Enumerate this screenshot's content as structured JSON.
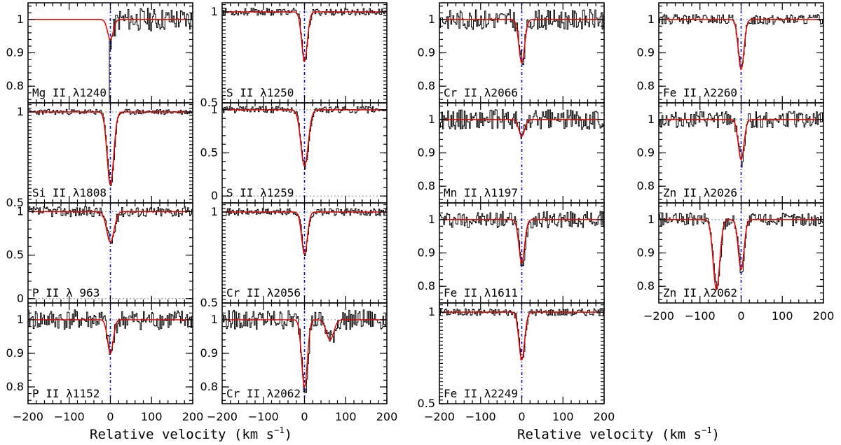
{
  "figure": {
    "xlabel_left": "Relative velocity (km s",
    "xlabel_right": "Relative velocity (km s",
    "xlabel_exponent": "−1",
    "xlabel_suffix": ")"
  },
  "chart_data": {
    "type": "line",
    "description_axis": "normalized flux vs relative velocity",
    "xlim": [
      -200,
      200
    ],
    "x_ticks": [
      -200,
      -100,
      0,
      100,
      200
    ],
    "x_tick_labels": [
      "−200",
      "−100",
      "0",
      "100",
      "200"
    ],
    "colors": {
      "data": "#000000",
      "model": "#e00000",
      "zero_line": "#1010c0",
      "continuum": "#888888"
    },
    "panels": [
      {
        "id": "mg2-1240",
        "col": 0,
        "row": 0,
        "label": "Mg II λ1240",
        "ylim": [
          0.75,
          1.05
        ],
        "yticks": [
          0.8,
          0.9,
          1.0
        ],
        "yticklabels": [
          "0.8",
          "0.9",
          "1"
        ],
        "components": [
          {
            "v": 0,
            "depth": 0.06,
            "width": 7
          }
        ],
        "noise": 0.035,
        "seed": 11,
        "blend": {
          "from": -200,
          "to": -5,
          "level": -1
        }
      },
      {
        "id": "si2-1808",
        "col": 0,
        "row": 1,
        "label": "Si II λ1808",
        "ylim": [
          0.5,
          1.05
        ],
        "yticks": [
          0.5,
          1.0
        ],
        "yticklabels": [
          "0.5",
          "1"
        ],
        "components": [
          {
            "v": 0,
            "depth": 0.4,
            "width": 8
          }
        ],
        "noise": 0.015,
        "seed": 23
      },
      {
        "id": "p2-963",
        "col": 0,
        "row": 2,
        "label": "P II λ 963",
        "ylim": [
          -0.05,
          1.1
        ],
        "yticks": [
          0,
          0.5,
          1.0
        ],
        "yticklabels": [
          "0",
          "0.5",
          "1"
        ],
        "components": [
          {
            "v": 0,
            "depth": 0.35,
            "width": 9
          }
        ],
        "noise": 0.06,
        "seed": 37,
        "zero_line": true
      },
      {
        "id": "p2-1152",
        "col": 0,
        "row": 3,
        "label": "P II λ1152",
        "ylim": [
          0.75,
          1.05
        ],
        "yticks": [
          0.8,
          0.9,
          1.0
        ],
        "yticklabels": [
          "0.8",
          "0.9",
          "1"
        ],
        "components": [
          {
            "v": 0,
            "depth": 0.1,
            "width": 7
          }
        ],
        "noise": 0.03,
        "seed": 41
      },
      {
        "id": "s2-1250",
        "col": 1,
        "row": 0,
        "label": "S II λ1250",
        "ylim": [
          0.5,
          1.05
        ],
        "yticks": [
          0.5,
          1.0
        ],
        "yticklabels": [
          "0.5",
          "1"
        ],
        "components": [
          {
            "v": 0,
            "depth": 0.27,
            "width": 7
          }
        ],
        "noise": 0.02,
        "seed": 53
      },
      {
        "id": "s2-1259",
        "col": 1,
        "row": 1,
        "label": "S II λ1259",
        "ylim": [
          -0.08,
          1.08
        ],
        "yticks": [
          0,
          0.5,
          1.0
        ],
        "yticklabels": [
          "0",
          "0.5",
          "1"
        ],
        "components": [
          {
            "v": 0,
            "depth": 0.65,
            "width": 9
          }
        ],
        "noise": 0.04,
        "seed": 61,
        "zero_line": true
      },
      {
        "id": "cr2-2056",
        "col": 1,
        "row": 2,
        "label": "Cr II λ2056",
        "ylim": [
          0.5,
          1.05
        ],
        "yticks": [
          0.5,
          1.0
        ],
        "yticklabels": [
          "0.5",
          "1"
        ],
        "components": [
          {
            "v": 0,
            "depth": 0.23,
            "width": 7
          }
        ],
        "noise": 0.02,
        "seed": 71
      },
      {
        "id": "cr2-2062",
        "col": 1,
        "row": 3,
        "label": "Cr II λ2062",
        "ylim": [
          0.75,
          1.05
        ],
        "yticks": [
          0.8,
          0.9,
          1.0
        ],
        "yticklabels": [
          "0.8",
          "0.9",
          "1"
        ],
        "components": [
          {
            "v": 0,
            "depth": 0.2,
            "width": 7
          },
          {
            "v": 62,
            "depth": 0.06,
            "width": 9
          }
        ],
        "noise": 0.03,
        "seed": 79
      },
      {
        "id": "cr2-2066",
        "col": 2,
        "row": 0,
        "label": "Cr II λ2066",
        "ylim": [
          0.75,
          1.05
        ],
        "yticks": [
          0.8,
          0.9,
          1.0
        ],
        "yticklabels": [
          "0.8",
          "0.9",
          "1"
        ],
        "components": [
          {
            "v": 0,
            "depth": 0.13,
            "width": 7
          }
        ],
        "noise": 0.03,
        "seed": 83
      },
      {
        "id": "mn2-1197",
        "col": 2,
        "row": 1,
        "label": "Mn II λ1197",
        "ylim": [
          0.75,
          1.05
        ],
        "yticks": [
          0.8,
          0.9,
          1.0
        ],
        "yticklabels": [
          "0.8",
          "0.9",
          "1"
        ],
        "components": [
          {
            "v": 0,
            "depth": 0.05,
            "width": 7
          }
        ],
        "noise": 0.03,
        "seed": 89
      },
      {
        "id": "fe2-1611",
        "col": 2,
        "row": 2,
        "label": "Fe II λ1611",
        "ylim": [
          0.75,
          1.05
        ],
        "yticks": [
          0.8,
          0.9,
          1.0
        ],
        "yticklabels": [
          "0.8",
          "0.9",
          "1"
        ],
        "components": [
          {
            "v": 0,
            "depth": 0.13,
            "width": 7
          }
        ],
        "noise": 0.025,
        "seed": 97
      },
      {
        "id": "fe2-2249",
        "col": 2,
        "row": 3,
        "label": "Fe II λ2249",
        "ylim": [
          0.5,
          1.05
        ],
        "yticks": [
          0.5,
          1.0
        ],
        "yticklabels": [
          "0.5",
          "1"
        ],
        "components": [
          {
            "v": 0,
            "depth": 0.26,
            "width": 7
          }
        ],
        "noise": 0.02,
        "seed": 101
      },
      {
        "id": "fe2-2260",
        "col": 3,
        "row": 0,
        "label": "Fe II λ2260",
        "ylim": [
          0.75,
          1.05
        ],
        "yticks": [
          0.8,
          0.9,
          1.0
        ],
        "yticklabels": [
          "0.8",
          "0.9",
          "1"
        ],
        "components": [
          {
            "v": 0,
            "depth": 0.15,
            "width": 7
          }
        ],
        "noise": 0.015,
        "seed": 107
      },
      {
        "id": "zn2-2026",
        "col": 3,
        "row": 1,
        "label": "Zn II λ2026",
        "ylim": [
          0.75,
          1.05
        ],
        "yticks": [
          0.8,
          0.9,
          1.0
        ],
        "yticklabels": [
          "0.8",
          "0.9",
          "1"
        ],
        "components": [
          {
            "v": 0,
            "depth": 0.12,
            "width": 7
          }
        ],
        "noise": 0.025,
        "seed": 113
      },
      {
        "id": "zn2-2062",
        "col": 3,
        "row": 2,
        "label": "Zn II λ2062",
        "ylim": [
          0.75,
          1.05
        ],
        "yticks": [
          0.8,
          0.9,
          1.0
        ],
        "yticklabels": [
          "0.8",
          "0.9",
          "1"
        ],
        "components": [
          {
            "v": 0,
            "depth": 0.15,
            "width": 7
          },
          {
            "v": -60,
            "depth": 0.21,
            "width": 8
          }
        ],
        "noise": 0.02,
        "seed": 127
      }
    ]
  }
}
